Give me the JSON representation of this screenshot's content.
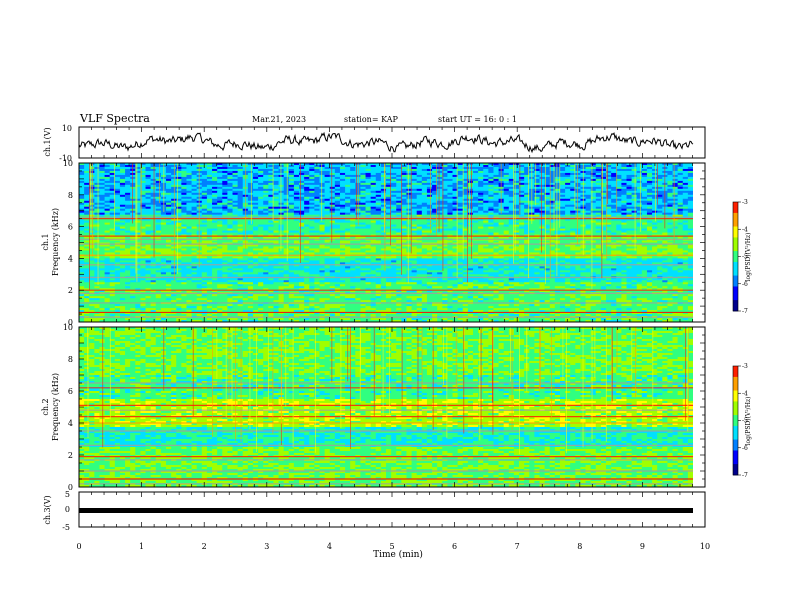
{
  "header": {
    "title": "VLF Spectra",
    "date": "Mar.21, 2023",
    "station": "station= KAP",
    "start": "start UT =  16: 0  : 1"
  },
  "colors": {
    "colormap": [
      "#00008c",
      "#0000ff",
      "#0080ff",
      "#00e0ff",
      "#30ff80",
      "#a0ff00",
      "#ffff00",
      "#ffa000",
      "#ff2000",
      "#ff0000",
      "#ffffff"
    ]
  },
  "chart_data": [
    {
      "type": "line",
      "panel": "top",
      "ylabel": "ch.1(V)",
      "ylim": [
        -10,
        10
      ],
      "y_ticks": [
        "10",
        "-10"
      ],
      "xlim": [
        0,
        10
      ],
      "note_series": "noisy voltage trace between about -5 and 5 V over the full 0–9.8 min span"
    },
    {
      "type": "heatmap",
      "panel": "ch1",
      "ylabel": "ch.1\nFrequency (kHz)",
      "ylabel_line1": "ch.1",
      "ylabel_line2": "Frequency (kHz)",
      "ylim": [
        0,
        10
      ],
      "y_ticks": [
        "0",
        "2",
        "4",
        "6",
        "8",
        "10"
      ],
      "xlim": [
        0,
        10
      ],
      "colorbar": {
        "label": "log(PSD)(V²/Hz)",
        "ticks": [
          "-3",
          "-4",
          "-5",
          "-6",
          "-7"
        ],
        "range": [
          -7,
          -3
        ]
      }
    },
    {
      "type": "heatmap",
      "panel": "ch2",
      "ylabel_line1": "ch.2",
      "ylabel_line2": "Frequency (kHz)",
      "ylim": [
        0,
        10
      ],
      "y_ticks": [
        "0",
        "2",
        "4",
        "6",
        "8",
        "10"
      ],
      "xlim": [
        0,
        10
      ],
      "colorbar": {
        "label": "log(PSD)(V²/Hz)",
        "ticks": [
          "-3",
          "-4",
          "-5",
          "-6",
          "-7"
        ],
        "range": [
          -7,
          -3
        ]
      }
    },
    {
      "type": "line",
      "panel": "bottom",
      "ylabel": "ch.3(V)",
      "ylim": [
        -5,
        5
      ],
      "y_ticks": [
        "5",
        "0",
        "-5"
      ],
      "xlim": [
        0,
        10
      ],
      "constant_value": -0.3,
      "xlabel": "Time (min)",
      "x_ticks": [
        "0",
        "1",
        "2",
        "3",
        "4",
        "5",
        "6",
        "7",
        "8",
        "9",
        "10"
      ]
    }
  ]
}
